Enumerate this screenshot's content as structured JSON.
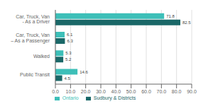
{
  "chart_data": {
    "type": "bar",
    "orientation": "horizontal",
    "categories": [
      "Car, Truck, Van - As a Driver",
      "Car, Truck, Van – As a Passenger",
      "Walked",
      "Public Transit"
    ],
    "series": [
      {
        "name": "Ontario",
        "color": "#3dbfb8",
        "values": [
          71.8,
          6.1,
          5.3,
          14.6
        ]
      },
      {
        "name": "Sudbury & Districts",
        "color": "#1a6868",
        "values": [
          82.5,
          6.3,
          5.2,
          4.5
        ]
      }
    ],
    "xlim": [
      0,
      90
    ],
    "xticks": [
      {
        "value": 0,
        "label": "0.0"
      },
      {
        "value": 10,
        "label": "10.0"
      },
      {
        "value": 20,
        "label": "20.0"
      },
      {
        "value": 30,
        "label": "30.0"
      },
      {
        "value": 40,
        "label": "40.0"
      },
      {
        "value": 50,
        "label": "50.0"
      },
      {
        "value": 60,
        "label": "60.0"
      },
      {
        "value": 70,
        "label": "70.0"
      },
      {
        "value": 80,
        "label": "80.0"
      },
      {
        "value": 90,
        "label": "90.0"
      }
    ],
    "grid": true,
    "data_labels": true,
    "legend": "bottom"
  }
}
